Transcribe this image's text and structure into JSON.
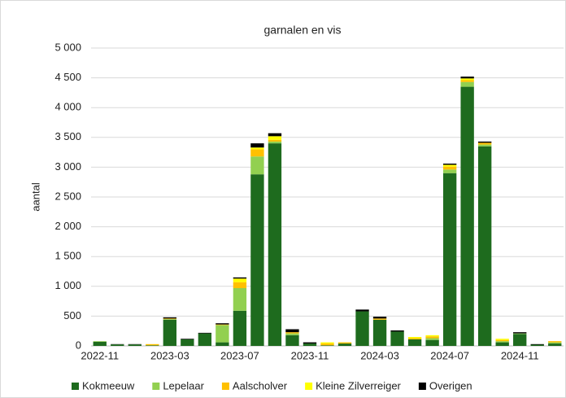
{
  "chart_data": {
    "type": "stacked_bar",
    "title": "garnalen en vis",
    "y_label": "aantal",
    "categories": [
      "2022-11",
      null,
      null,
      null,
      "2023-03",
      null,
      null,
      null,
      "2023-07",
      null,
      null,
      null,
      "2023-11",
      null,
      null,
      null,
      "2024-03",
      null,
      null,
      null,
      "2024-07",
      null,
      null,
      null,
      "2024-11",
      null,
      null
    ],
    "series": [
      {
        "name": "Kokmeeuw",
        "color": "#1e6b1e",
        "values": [
          70,
          25,
          25,
          10,
          440,
          110,
          210,
          60,
          590,
          2880,
          3400,
          180,
          40,
          10,
          40,
          580,
          440,
          240,
          110,
          100,
          2900,
          4350,
          3350,
          60,
          200,
          20,
          40
        ]
      },
      {
        "name": "Lepelaar",
        "color": "#92d050",
        "values": [
          10,
          0,
          0,
          0,
          10,
          0,
          0,
          290,
          380,
          300,
          30,
          30,
          0,
          0,
          0,
          0,
          0,
          0,
          0,
          30,
          60,
          80,
          30,
          20,
          10,
          0,
          20
        ]
      },
      {
        "name": "Aalscholver",
        "color": "#ffc000",
        "values": [
          0,
          0,
          0,
          20,
          10,
          0,
          0,
          10,
          100,
          120,
          30,
          20,
          0,
          30,
          20,
          0,
          20,
          0,
          20,
          30,
          50,
          30,
          30,
          20,
          0,
          0,
          20
        ]
      },
      {
        "name": "Kleine Zilverreiger",
        "color": "#ffff00",
        "values": [
          0,
          0,
          0,
          0,
          0,
          0,
          0,
          0,
          60,
          30,
          60,
          0,
          0,
          20,
          0,
          0,
          0,
          0,
          20,
          20,
          30,
          30,
          0,
          20,
          0,
          0,
          0
        ]
      },
      {
        "name": "Overigen",
        "color": "#000000",
        "values": [
          0,
          5,
          5,
          0,
          20,
          10,
          10,
          20,
          20,
          70,
          50,
          50,
          20,
          0,
          0,
          30,
          30,
          20,
          0,
          0,
          20,
          30,
          20,
          0,
          20,
          10,
          0
        ]
      }
    ],
    "ylim": [
      0,
      5000
    ],
    "yticks": [
      0,
      {
        "value": 500,
        "label": "500"
      },
      {
        "value": 1000,
        "label": "1 000"
      },
      {
        "value": 1500,
        "label": "1 500"
      },
      {
        "value": 2000,
        "label": "2 000"
      },
      {
        "value": 2500,
        "label": "2 500"
      },
      {
        "value": 3000,
        "label": "3 000"
      },
      {
        "value": 3500,
        "label": "3 500"
      },
      {
        "value": 4000,
        "label": "4 000"
      },
      {
        "value": 4500,
        "label": "4 500"
      },
      {
        "value": 5000,
        "label": "5 000"
      }
    ],
    "grid": true,
    "legend": "bottom"
  }
}
